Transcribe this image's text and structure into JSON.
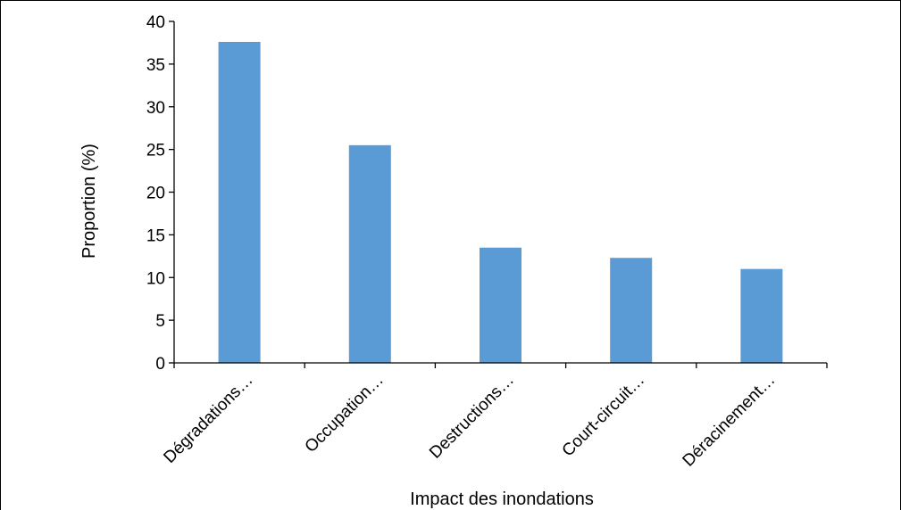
{
  "chart_data": {
    "type": "bar",
    "categories": [
      "Dégradations…",
      "Occupation…",
      "Destructions…",
      "Court-circuit…",
      "Déracinement…"
    ],
    "values": [
      37.6,
      25.5,
      13.5,
      12.3,
      11.0
    ],
    "xlabel": "Impact des inondations",
    "ylabel": "Proportion (%)",
    "ylim": [
      0,
      40
    ],
    "yticks": [
      0,
      5,
      10,
      15,
      20,
      25,
      30,
      35,
      40
    ],
    "bar_color": "#5b9bd5",
    "grid": false,
    "legend": "none"
  }
}
